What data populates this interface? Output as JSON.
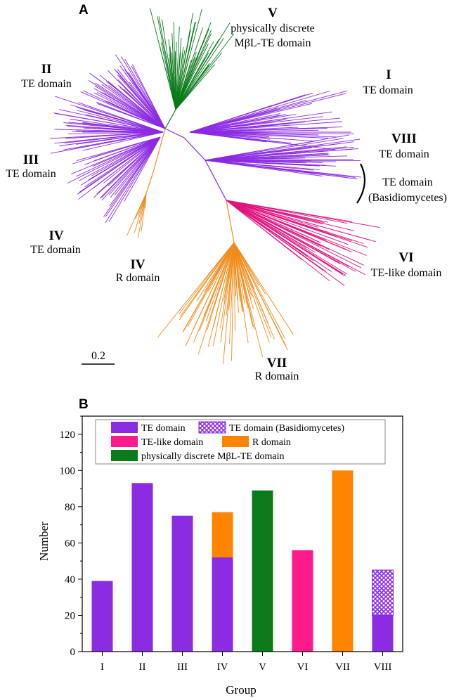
{
  "panel_a": {
    "label": "A",
    "scale_bar_label": "0.2",
    "colors": {
      "te": "#8b2be2",
      "discrete": "#0a7a1a",
      "r": "#f08c1a",
      "te_like": "#e0137f"
    },
    "clades": [
      {
        "id": "I",
        "numeral": "I",
        "desc": "TE domain"
      },
      {
        "id": "II",
        "numeral": "II",
        "desc": "TE domain"
      },
      {
        "id": "III",
        "numeral": "III",
        "desc": "TE domain"
      },
      {
        "id": "IV-te",
        "numeral": "IV",
        "desc": "TE domain"
      },
      {
        "id": "IV-r",
        "numeral": "IV",
        "desc": "R domain"
      },
      {
        "id": "V",
        "numeral": "V",
        "desc1": "physically discrete",
        "desc2": "MβL-TE domain"
      },
      {
        "id": "VI",
        "numeral": "VI",
        "desc": "TE-like domain"
      },
      {
        "id": "VII",
        "numeral": "VII",
        "desc": "R domain"
      },
      {
        "id": "VIII",
        "numeral": "VIII",
        "desc": "TE domain"
      },
      {
        "id": "basidio",
        "desc1": "TE domain",
        "desc2": "(Basidiomycetes)"
      }
    ]
  },
  "chart_data": {
    "type": "bar",
    "panel_label": "B",
    "xlabel": "Group",
    "ylabel": "Number",
    "ylim": [
      0,
      130
    ],
    "yticks": [
      0,
      20,
      40,
      60,
      80,
      100,
      120
    ],
    "categories": [
      "I",
      "II",
      "III",
      "IV",
      "V",
      "VI",
      "VII",
      "VIII"
    ],
    "series": [
      {
        "name": "TE domain",
        "color": "#8b2be2",
        "pattern": false,
        "values": [
          39,
          93,
          75,
          52,
          0,
          0,
          0,
          20
        ]
      },
      {
        "name": "TE domain (Basidiomycetes)",
        "color": "#8b2be2",
        "pattern": true,
        "values": [
          0,
          0,
          0,
          0,
          0,
          0,
          0,
          25
        ]
      },
      {
        "name": "TE-like domain",
        "color": "#ff1a8c",
        "pattern": false,
        "values": [
          0,
          0,
          0,
          0,
          0,
          56,
          0,
          0
        ]
      },
      {
        "name": "R domain",
        "color": "#ff8400",
        "pattern": false,
        "values": [
          0,
          0,
          0,
          25,
          0,
          0,
          100,
          0
        ]
      },
      {
        "name": "physically discrete MβL-TE domain",
        "color": "#0a7a1a",
        "pattern": false,
        "values": [
          0,
          0,
          0,
          0,
          89,
          0,
          0,
          0
        ]
      }
    ],
    "legend": [
      {
        "series": 0,
        "label": "TE domain"
      },
      {
        "series": 1,
        "label": "TE domain (Basidiomycetes)"
      },
      {
        "series": 2,
        "label": "TE-like domain"
      },
      {
        "series": 3,
        "label": "R domain"
      },
      {
        "series": 4,
        "label": "physically discrete MβL-TE domain"
      }
    ],
    "legend_position": "top"
  }
}
